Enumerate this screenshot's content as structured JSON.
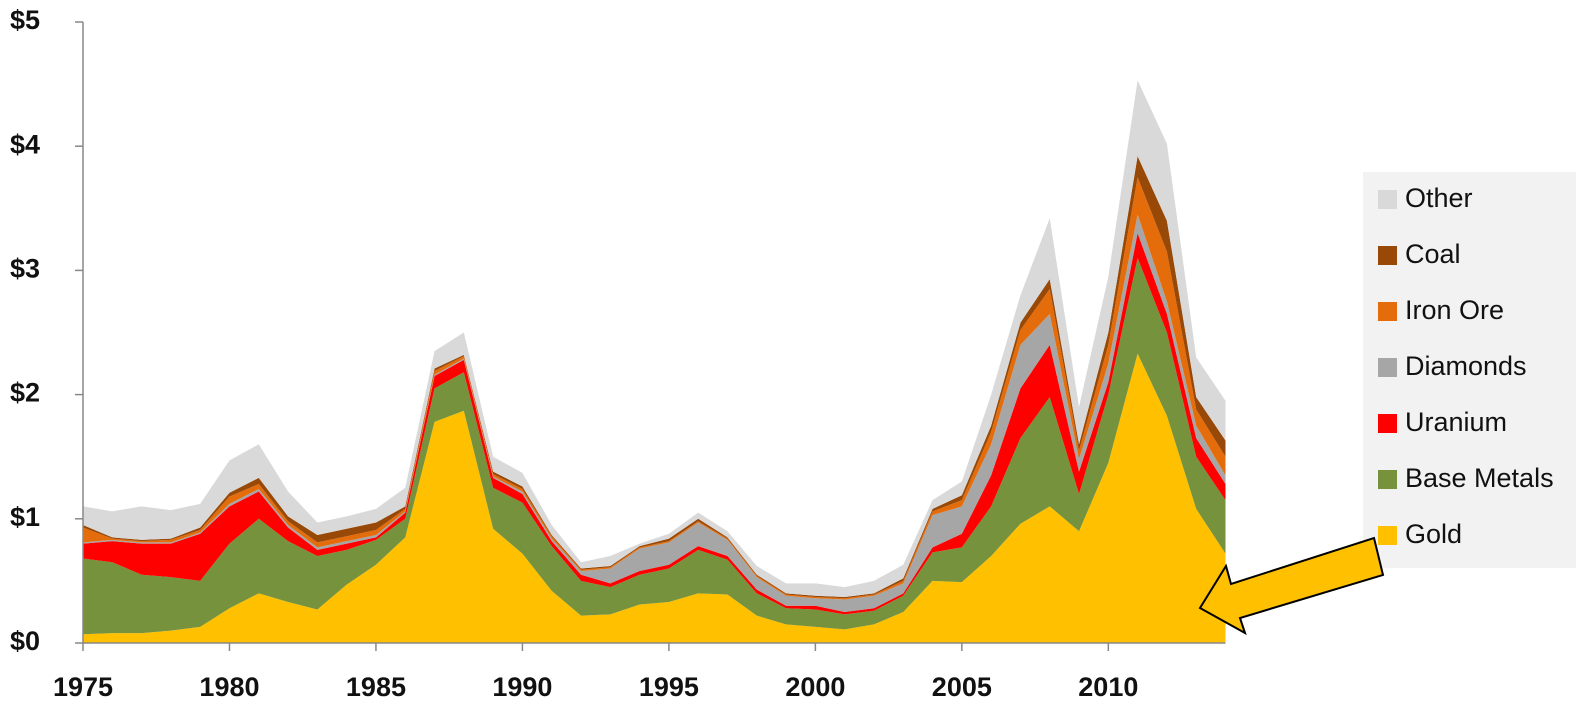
{
  "chart_data": {
    "type": "stacked_area",
    "x": [
      1975,
      1976,
      1977,
      1978,
      1979,
      1980,
      1981,
      1982,
      1983,
      1984,
      1985,
      1986,
      1987,
      1988,
      1989,
      1990,
      1991,
      1992,
      1993,
      1994,
      1995,
      1996,
      1997,
      1998,
      1999,
      2000,
      2001,
      2002,
      2003,
      2004,
      2005,
      2006,
      2007,
      2008,
      2009,
      2010,
      2011,
      2012,
      2013,
      2014
    ],
    "series": [
      {
        "name": "Gold",
        "color": "#FFC000",
        "values": [
          0.07,
          0.08,
          0.08,
          0.1,
          0.13,
          0.28,
          0.4,
          0.33,
          0.27,
          0.47,
          0.63,
          0.85,
          1.78,
          1.87,
          0.92,
          0.72,
          0.42,
          0.22,
          0.23,
          0.31,
          0.33,
          0.4,
          0.39,
          0.22,
          0.15,
          0.13,
          0.11,
          0.15,
          0.25,
          0.5,
          0.49,
          0.7,
          0.96,
          1.1,
          0.9,
          1.45,
          2.33,
          1.83,
          1.08,
          0.72
        ]
      },
      {
        "name": "Base Metals",
        "color": "#76923C",
        "values": [
          0.61,
          0.57,
          0.47,
          0.43,
          0.37,
          0.52,
          0.6,
          0.49,
          0.43,
          0.28,
          0.2,
          0.15,
          0.27,
          0.31,
          0.33,
          0.41,
          0.36,
          0.28,
          0.22,
          0.24,
          0.27,
          0.35,
          0.28,
          0.18,
          0.13,
          0.14,
          0.12,
          0.11,
          0.13,
          0.23,
          0.28,
          0.4,
          0.69,
          0.88,
          0.3,
          0.55,
          0.77,
          0.67,
          0.42,
          0.43
        ]
      },
      {
        "name": "Uranium",
        "color": "#FF0000",
        "values": [
          0.12,
          0.17,
          0.25,
          0.27,
          0.38,
          0.3,
          0.22,
          0.11,
          0.05,
          0.05,
          0.02,
          0.05,
          0.1,
          0.1,
          0.08,
          0.07,
          0.04,
          0.05,
          0.03,
          0.03,
          0.03,
          0.03,
          0.03,
          0.03,
          0.02,
          0.03,
          0.02,
          0.02,
          0.02,
          0.04,
          0.11,
          0.25,
          0.4,
          0.42,
          0.18,
          0.1,
          0.2,
          0.15,
          0.15,
          0.13
        ]
      },
      {
        "name": "Diamonds",
        "color": "#A6A6A6",
        "values": [
          0.01,
          0.01,
          0.01,
          0.01,
          0.01,
          0.02,
          0.02,
          0.02,
          0.02,
          0.02,
          0.02,
          0.01,
          0.01,
          0.01,
          0.01,
          0.02,
          0.02,
          0.03,
          0.12,
          0.18,
          0.18,
          0.19,
          0.13,
          0.1,
          0.08,
          0.06,
          0.1,
          0.1,
          0.08,
          0.26,
          0.22,
          0.25,
          0.35,
          0.25,
          0.1,
          0.15,
          0.15,
          0.1,
          0.1,
          0.07
        ]
      },
      {
        "name": "Iron Ore",
        "color": "#E46C0A",
        "values": [
          0.12,
          0.01,
          0.01,
          0.02,
          0.02,
          0.06,
          0.04,
          0.03,
          0.04,
          0.04,
          0.04,
          0.02,
          0.03,
          0.02,
          0.02,
          0.02,
          0.02,
          0.01,
          0.01,
          0.01,
          0.01,
          0.01,
          0.01,
          0.01,
          0.01,
          0.01,
          0.01,
          0.01,
          0.02,
          0.03,
          0.05,
          0.1,
          0.12,
          0.2,
          0.07,
          0.15,
          0.3,
          0.4,
          0.13,
          0.15
        ]
      },
      {
        "name": "Coal",
        "color": "#984807",
        "values": [
          0.02,
          0.01,
          0.01,
          0.01,
          0.02,
          0.03,
          0.05,
          0.04,
          0.06,
          0.06,
          0.06,
          0.02,
          0.02,
          0.01,
          0.02,
          0.02,
          0.01,
          0.01,
          0.01,
          0.01,
          0.02,
          0.02,
          0.01,
          0.01,
          0.01,
          0.01,
          0.01,
          0.01,
          0.02,
          0.02,
          0.04,
          0.05,
          0.06,
          0.08,
          0.05,
          0.1,
          0.17,
          0.25,
          0.1,
          0.13
        ]
      },
      {
        "name": "Other",
        "color": "#D9D9D9",
        "values": [
          0.15,
          0.21,
          0.27,
          0.23,
          0.19,
          0.26,
          0.27,
          0.2,
          0.1,
          0.1,
          0.11,
          0.15,
          0.14,
          0.18,
          0.12,
          0.11,
          0.08,
          0.05,
          0.08,
          0.02,
          0.04,
          0.05,
          0.05,
          0.07,
          0.08,
          0.1,
          0.08,
          0.1,
          0.11,
          0.07,
          0.11,
          0.25,
          0.22,
          0.49,
          0.3,
          0.45,
          0.61,
          0.62,
          0.32,
          0.32
        ]
      }
    ],
    "xlim": [
      1975,
      2014
    ],
    "xticks": [
      1975,
      1980,
      1985,
      1990,
      1995,
      2000,
      2005,
      2010
    ],
    "ylim": [
      0,
      5
    ],
    "yticks": [
      {
        "value": 0,
        "label": "$0"
      },
      {
        "value": 1,
        "label": "$1"
      },
      {
        "value": 2,
        "label": "$2"
      },
      {
        "value": 3,
        "label": "$3"
      },
      {
        "value": 4,
        "label": "$4"
      },
      {
        "value": 5,
        "label": "$5"
      }
    ],
    "legend": "right"
  }
}
